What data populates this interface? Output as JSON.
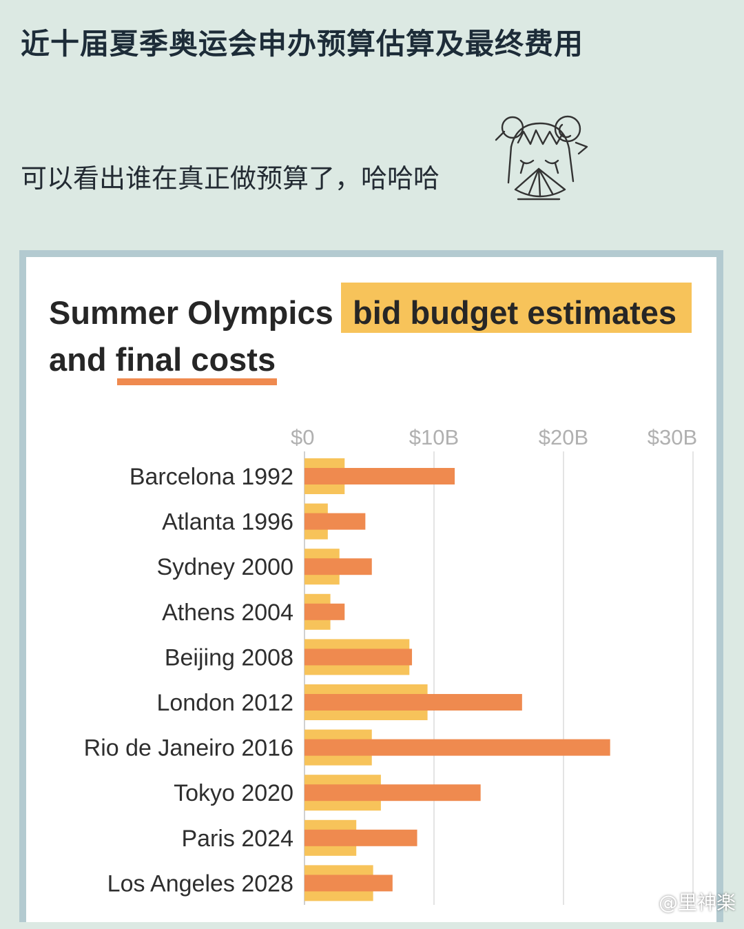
{
  "post": {
    "title": "近十届夏季奥运会申办预算估算及最终费用",
    "caption": "可以看出谁在真正做预算了，哈哈哈",
    "sticker_icon": "anime-girl-fan-sticker"
  },
  "watermark": {
    "text": "@里神楽",
    "icon": "weibo-icon"
  },
  "colors": {
    "page_bg": "#dce9e3",
    "card_border": "#b3cad0",
    "budget": "#f7c35a",
    "final": "#ef8a4f",
    "grid": "#e4e4e4",
    "tick_text": "#b0b0b0",
    "label_text": "#2e2e2e"
  },
  "chart_data": {
    "type": "bar",
    "orientation": "horizontal",
    "title_line1": "Summer Olympics",
    "title_highlight": "bid budget estimates",
    "title_line2_prefix": "and ",
    "title_underlined": "final costs",
    "categories": [
      "Barcelona 1992",
      "Atlanta 1996",
      "Sydney 2000",
      "Athens 2004",
      "Beijing 2008",
      "London 2012",
      "Rio de Janeiro 2016",
      "Tokyo 2020",
      "Paris 2024",
      "Los Angeles 2028"
    ],
    "series": [
      {
        "key": "bid_budget_estimates",
        "values": [
          3.1,
          1.8,
          2.7,
          2.0,
          8.1,
          9.5,
          5.2,
          5.9,
          4.0,
          5.3
        ]
      },
      {
        "key": "final_costs",
        "values": [
          11.6,
          4.7,
          5.2,
          3.1,
          8.3,
          16.8,
          23.6,
          13.6,
          8.7,
          6.8
        ]
      }
    ],
    "x_ticks": [
      {
        "value": 0,
        "label": "$0"
      },
      {
        "value": 10,
        "label": "$10B"
      },
      {
        "value": 20,
        "label": "$20B"
      },
      {
        "value": 30,
        "label": "$30B"
      }
    ],
    "xlim": [
      0,
      30
    ],
    "x_unit": "billion USD",
    "grid": true,
    "legend": "embedded-in-title"
  }
}
